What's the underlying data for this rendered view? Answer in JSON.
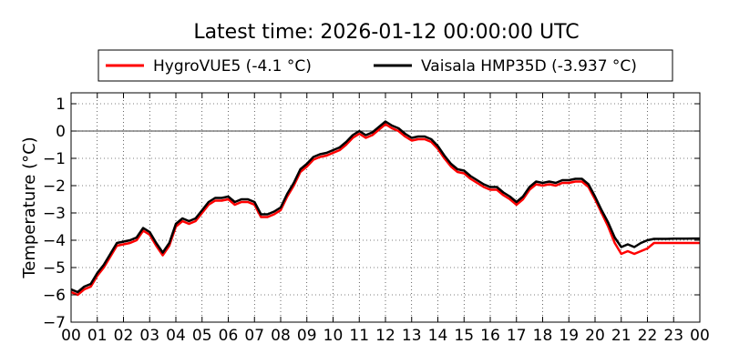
{
  "chart_data": {
    "type": "line",
    "title": "Latest time: 2026-01-12 00:00:00 UTC",
    "ylabel": "Temperature (°C)",
    "xlabel": "",
    "xlim": [
      0,
      24
    ],
    "ylim": [
      -7,
      1.4
    ],
    "grid": true,
    "legend_position": "top",
    "xtick_values": [
      0,
      1,
      2,
      3,
      4,
      5,
      6,
      7,
      8,
      9,
      10,
      11,
      12,
      13,
      14,
      15,
      16,
      17,
      18,
      19,
      20,
      21,
      22,
      23,
      24
    ],
    "xtick_labels": [
      "00",
      "01",
      "02",
      "03",
      "04",
      "05",
      "06",
      "07",
      "08",
      "09",
      "10",
      "11",
      "12",
      "13",
      "14",
      "15",
      "16",
      "17",
      "18",
      "19",
      "20",
      "21",
      "22",
      "23",
      "00"
    ],
    "ytick_values": [
      1,
      0,
      -1,
      -2,
      -3,
      -4,
      -5,
      -6,
      -7
    ],
    "ytick_labels": [
      "1",
      "0",
      "−1",
      "−2",
      "−3",
      "−4",
      "−5",
      "−6",
      "−7"
    ],
    "reference_line": 0,
    "series": [
      {
        "name": "HygroVUE5 (-4.1 °C)",
        "color": "#ff0000",
        "x": [
          0,
          0.25,
          0.5,
          0.75,
          1,
          1.25,
          1.5,
          1.75,
          2,
          2.25,
          2.5,
          2.75,
          3,
          3.25,
          3.5,
          3.75,
          4,
          4.25,
          4.5,
          4.75,
          5,
          5.25,
          5.5,
          5.75,
          6,
          6.25,
          6.5,
          6.75,
          7,
          7.25,
          7.5,
          7.75,
          8,
          8.25,
          8.5,
          8.75,
          9,
          9.25,
          9.5,
          9.75,
          10,
          10.25,
          10.5,
          10.75,
          11,
          11.25,
          11.5,
          11.75,
          12,
          12.25,
          12.5,
          12.75,
          13,
          13.25,
          13.5,
          13.75,
          14,
          14.25,
          14.5,
          14.75,
          15,
          15.25,
          15.5,
          15.75,
          16,
          16.25,
          16.5,
          16.75,
          17,
          17.25,
          17.5,
          17.75,
          18,
          18.25,
          18.5,
          18.75,
          19,
          19.25,
          19.5,
          19.75,
          20,
          20.25,
          20.5,
          20.75,
          21,
          21.25,
          21.5,
          21.75,
          22,
          22.25,
          22.5,
          22.75,
          23,
          23.25,
          23.5,
          23.75,
          24
        ],
        "y": [
          -5.9,
          -6.0,
          -5.8,
          -5.7,
          -5.3,
          -5.0,
          -4.6,
          -4.2,
          -4.15,
          -4.1,
          -4.0,
          -3.65,
          -3.8,
          -4.2,
          -4.55,
          -4.2,
          -3.5,
          -3.3,
          -3.4,
          -3.3,
          -3.0,
          -2.7,
          -2.55,
          -2.55,
          -2.5,
          -2.7,
          -2.6,
          -2.6,
          -2.7,
          -3.15,
          -3.15,
          -3.05,
          -2.9,
          -2.4,
          -2.0,
          -1.5,
          -1.3,
          -1.05,
          -0.95,
          -0.9,
          -0.8,
          -0.7,
          -0.5,
          -0.25,
          -0.1,
          -0.25,
          -0.15,
          0.05,
          0.25,
          0.1,
          0.0,
          -0.2,
          -0.35,
          -0.3,
          -0.3,
          -0.4,
          -0.65,
          -1.0,
          -1.3,
          -1.5,
          -1.55,
          -1.75,
          -1.9,
          -2.05,
          -2.15,
          -2.15,
          -2.35,
          -2.5,
          -2.7,
          -2.5,
          -2.15,
          -1.95,
          -2.0,
          -1.95,
          -2.0,
          -1.9,
          -1.9,
          -1.85,
          -1.85,
          -2.05,
          -2.5,
          -3.0,
          -3.5,
          -4.1,
          -4.5,
          -4.4,
          -4.5,
          -4.4,
          -4.3,
          -4.1,
          -4.1,
          -4.1,
          -4.1,
          -4.1,
          -4.1,
          -4.1,
          -4.1
        ]
      },
      {
        "name": "Vaisala HMP35D (-3.937 °C)",
        "color": "#000000",
        "x": [
          0,
          0.25,
          0.5,
          0.75,
          1,
          1.25,
          1.5,
          1.75,
          2,
          2.25,
          2.5,
          2.75,
          3,
          3.25,
          3.5,
          3.75,
          4,
          4.25,
          4.5,
          4.75,
          5,
          5.25,
          5.5,
          5.75,
          6,
          6.25,
          6.5,
          6.75,
          7,
          7.25,
          7.5,
          7.75,
          8,
          8.25,
          8.5,
          8.75,
          9,
          9.25,
          9.5,
          9.75,
          10,
          10.25,
          10.5,
          10.75,
          11,
          11.25,
          11.5,
          11.75,
          12,
          12.25,
          12.5,
          12.75,
          13,
          13.25,
          13.5,
          13.75,
          14,
          14.25,
          14.5,
          14.75,
          15,
          15.25,
          15.5,
          15.75,
          16,
          16.25,
          16.5,
          16.75,
          17,
          17.25,
          17.5,
          17.75,
          18,
          18.25,
          18.5,
          18.75,
          19,
          19.25,
          19.5,
          19.75,
          20,
          20.25,
          20.5,
          20.75,
          21,
          21.25,
          21.5,
          21.75,
          22,
          22.25,
          22.5,
          22.75,
          23,
          23.25,
          23.5,
          23.75,
          24
        ],
        "y": [
          -5.8,
          -5.9,
          -5.7,
          -5.6,
          -5.2,
          -4.9,
          -4.5,
          -4.1,
          -4.05,
          -4.0,
          -3.9,
          -3.55,
          -3.7,
          -4.1,
          -4.45,
          -4.1,
          -3.4,
          -3.2,
          -3.3,
          -3.2,
          -2.9,
          -2.6,
          -2.45,
          -2.45,
          -2.4,
          -2.6,
          -2.5,
          -2.5,
          -2.6,
          -3.05,
          -3.05,
          -2.95,
          -2.8,
          -2.3,
          -1.9,
          -1.4,
          -1.2,
          -0.95,
          -0.85,
          -0.8,
          -0.7,
          -0.6,
          -0.4,
          -0.15,
          -0.0,
          -0.15,
          -0.05,
          0.15,
          0.35,
          0.2,
          0.1,
          -0.1,
          -0.25,
          -0.2,
          -0.2,
          -0.3,
          -0.55,
          -0.9,
          -1.2,
          -1.4,
          -1.45,
          -1.65,
          -1.8,
          -1.95,
          -2.05,
          -2.05,
          -2.25,
          -2.4,
          -2.6,
          -2.4,
          -2.05,
          -1.85,
          -1.9,
          -1.85,
          -1.9,
          -1.8,
          -1.8,
          -1.75,
          -1.75,
          -1.95,
          -2.4,
          -2.9,
          -3.35,
          -3.9,
          -4.25,
          -4.15,
          -4.25,
          -4.1,
          -4.0,
          -3.95,
          -3.95,
          -3.95,
          -3.94,
          -3.94,
          -3.94,
          -3.937,
          -3.937
        ]
      }
    ]
  }
}
